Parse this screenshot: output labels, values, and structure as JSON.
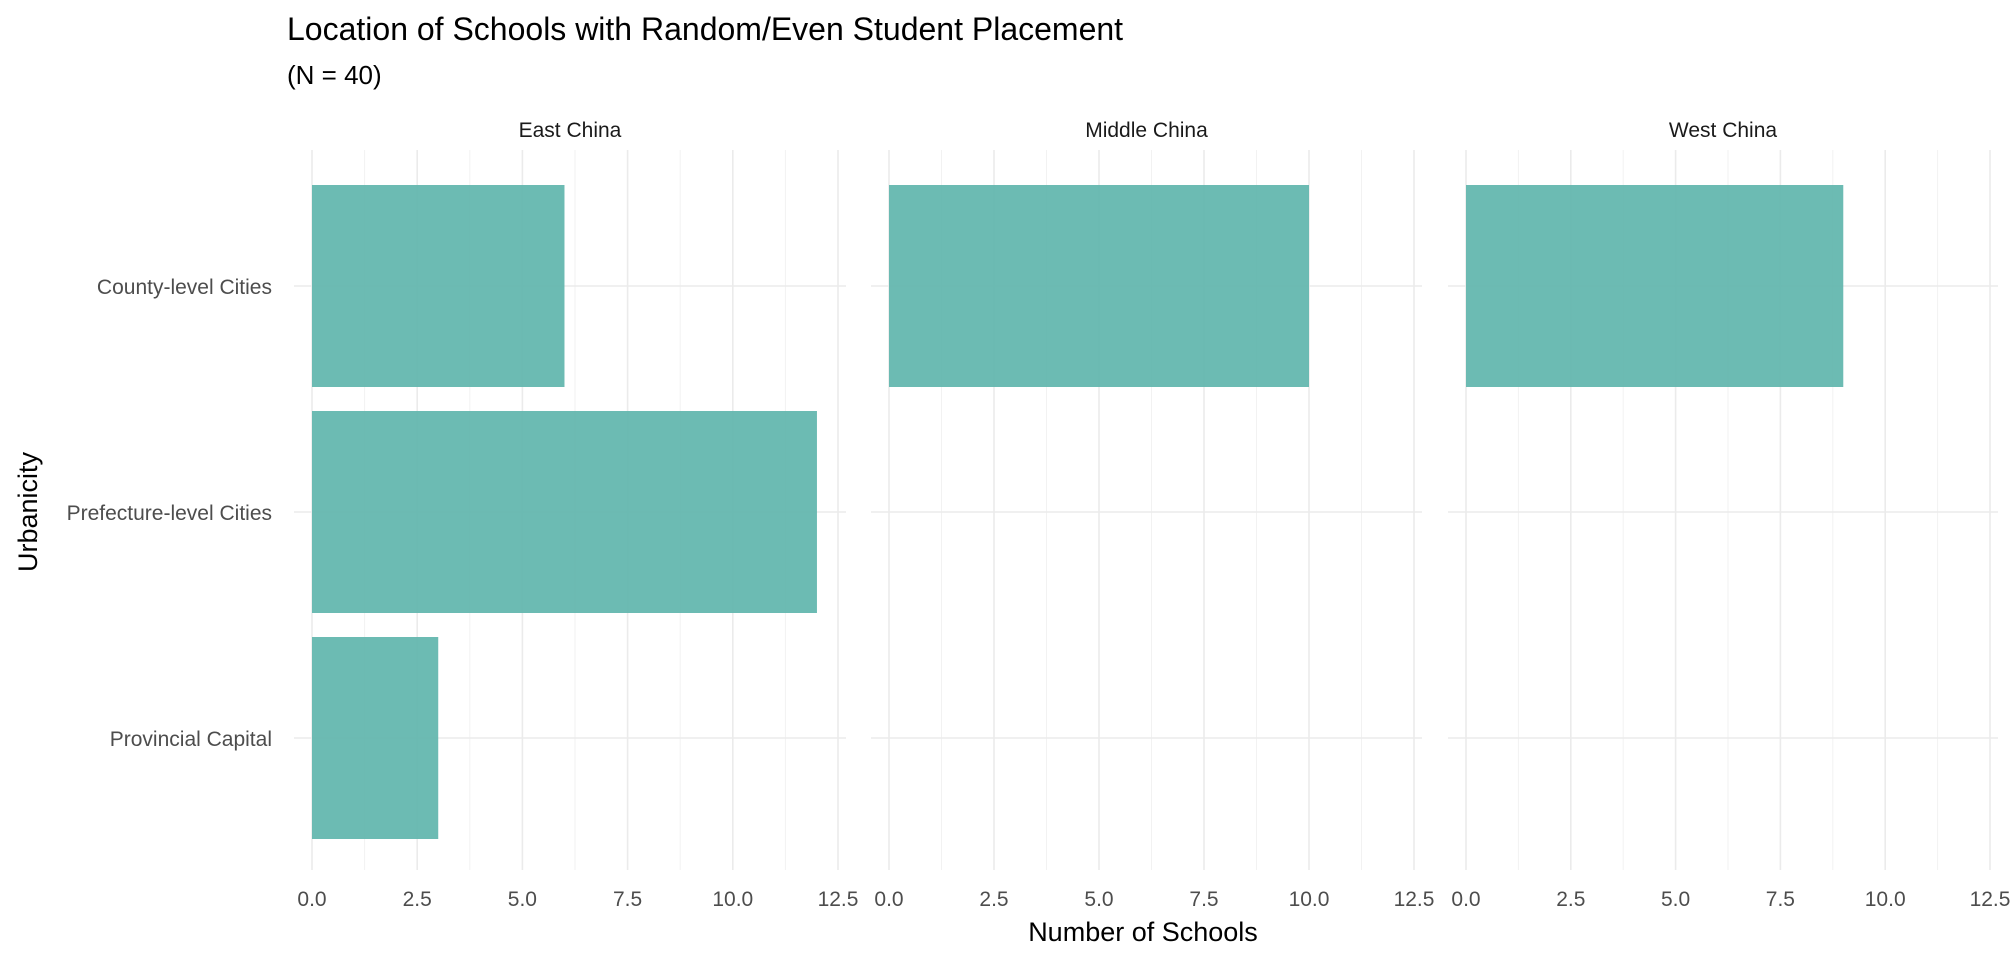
{
  "chart_data": {
    "type": "bar",
    "orientation": "horizontal",
    "title": "Location of Schools with Random/Even Student Placement",
    "subtitle": "(N = 40)",
    "xlabel": "Number of Schools",
    "ylabel": "Urbanicity",
    "categories": [
      "County-level Cities",
      "Prefecture-level Cities",
      "Provincial Capital"
    ],
    "xlim": [
      0,
      12.5
    ],
    "xticks": [
      "0.0",
      "2.5",
      "5.0",
      "7.5",
      "10.0",
      "12.5"
    ],
    "grid": true,
    "bar_color": "#5fb5ac",
    "facets": [
      {
        "name": "East China",
        "values": [
          6,
          12,
          3
        ]
      },
      {
        "name": "Middle China",
        "values": [
          10,
          0,
          0
        ]
      },
      {
        "name": "West China",
        "values": [
          9,
          0,
          0
        ]
      }
    ]
  }
}
